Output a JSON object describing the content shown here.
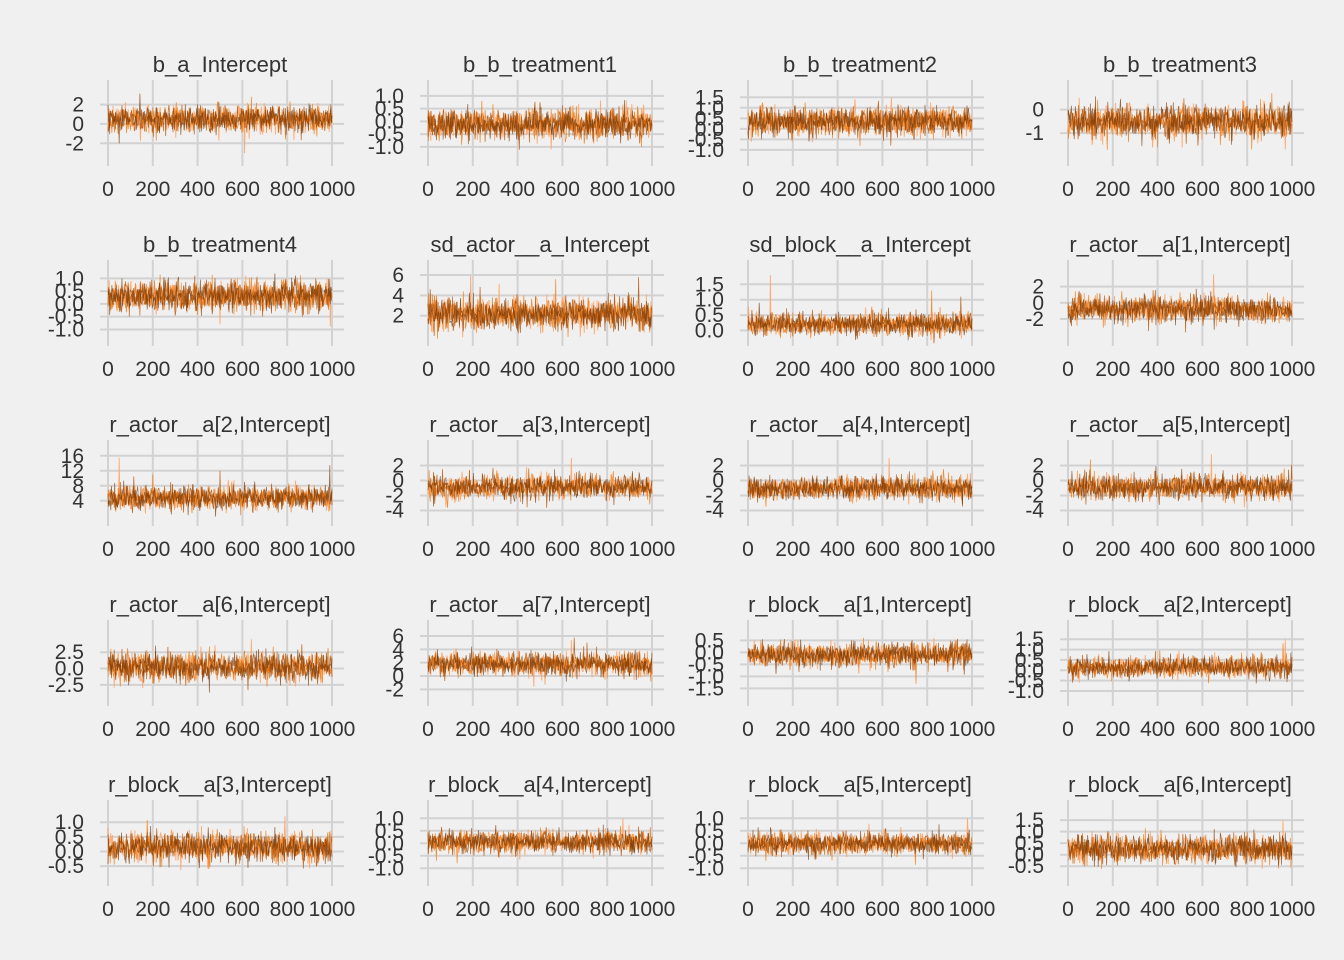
{
  "figure": {
    "background": "#f0f0f0",
    "grid_color": "#d2d2d2",
    "text_color": "#333333"
  },
  "chart_data": [
    {
      "type": "line",
      "title": "b_a_Intercept",
      "x_ticks": [
        0,
        200,
        400,
        600,
        800,
        1000
      ],
      "y_ticks": [
        "-2",
        "0",
        "2"
      ],
      "ylim": [
        -2.9,
        3.3
      ],
      "center": 0.5,
      "spread": 0.7,
      "spikes": [
        [
          610,
          -3.0
        ],
        [
          640,
          2.8
        ]
      ],
      "grid": true,
      "legend": "none"
    },
    {
      "type": "line",
      "title": "b_b_treatment1",
      "x_ticks": [
        0,
        200,
        400,
        600,
        800,
        1000
      ],
      "y_ticks": [
        "-1.0",
        "-0.5",
        "0.0",
        "0.5",
        "1.0"
      ],
      "ylim": [
        -1.2,
        1.15
      ],
      "center": -0.1,
      "spread": 0.3,
      "spikes": [
        [
          550,
          -1.1
        ],
        [
          240,
          0.8
        ]
      ],
      "grid": true,
      "legend": "none"
    },
    {
      "type": "line",
      "title": "b_b_treatment2",
      "x_ticks": [
        0,
        200,
        400,
        600,
        800,
        1000
      ],
      "y_ticks": [
        "-1.0",
        "-0.5",
        "0.0",
        "0.5",
        "1.0",
        "1.5"
      ],
      "ylim": [
        -1.1,
        1.75
      ],
      "center": 0.35,
      "spread": 0.35,
      "spikes": [
        [
          640,
          1.5
        ],
        [
          500,
          -0.8
        ]
      ],
      "grid": true,
      "legend": "none"
    },
    {
      "type": "line",
      "title": "b_b_treatment3",
      "x_ticks": [
        0,
        200,
        400,
        600,
        800,
        1000
      ],
      "y_ticks": [
        "-1",
        "0"
      ],
      "ylim": [
        -1.8,
        0.75
      ],
      "center": -0.5,
      "spread": 0.35,
      "spikes": [
        [
          50,
          0.5
        ],
        [
          400,
          -1.6
        ]
      ],
      "grid": true,
      "legend": "none"
    },
    {
      "type": "line",
      "title": "b_b_treatment4",
      "x_ticks": [
        0,
        200,
        400,
        600,
        800,
        1000
      ],
      "y_ticks": [
        "-1.0",
        "-0.5",
        "0.0",
        "0.5",
        "1.0"
      ],
      "ylim": [
        -1.1,
        1.25
      ],
      "center": 0.3,
      "spread": 0.3,
      "spikes": [
        [
          500,
          -0.8
        ],
        [
          640,
          1.05
        ]
      ],
      "grid": true,
      "legend": "none"
    },
    {
      "type": "line",
      "title": "sd_actor__a_Intercept",
      "x_ticks": [
        0,
        200,
        400,
        600,
        800,
        1000
      ],
      "y_ticks": [
        "2",
        "4",
        "6"
      ],
      "ylim": [
        0.4,
        6.3
      ],
      "center": 2.2,
      "spread": 0.8,
      "spikes": [
        [
          190,
          5.9
        ],
        [
          570,
          5.6
        ],
        [
          940,
          5.8
        ],
        [
          10,
          4.6
        ]
      ],
      "grid": true,
      "legend": "none"
    },
    {
      "type": "line",
      "title": "sd_block__a_Intercept",
      "x_ticks": [
        0,
        200,
        400,
        600,
        800,
        1000
      ],
      "y_ticks": [
        "0.0",
        "0.5",
        "1.0",
        "1.5"
      ],
      "ylim": [
        -0.05,
        1.9
      ],
      "center": 0.2,
      "spread": 0.18,
      "spikes": [
        [
          100,
          1.8
        ],
        [
          820,
          1.3
        ],
        [
          950,
          1.1
        ],
        [
          50,
          0.9
        ]
      ],
      "grid": true,
      "legend": "none"
    },
    {
      "type": "line",
      "title": "r_actor__a[1,Intercept]",
      "x_ticks": [
        0,
        200,
        400,
        600,
        800,
        1000
      ],
      "y_ticks": [
        "-2",
        "0",
        "2"
      ],
      "ylim": [
        -3.6,
        3.8
      ],
      "center": -0.8,
      "spread": 0.8,
      "spikes": [
        [
          650,
          3.5
        ],
        [
          40,
          -2.8
        ]
      ],
      "grid": true,
      "legend": "none"
    },
    {
      "type": "line",
      "title": "r_actor__a[2,Intercept]",
      "x_ticks": [
        0,
        200,
        400,
        600,
        800,
        1000
      ],
      "y_ticks": [
        "4",
        "8",
        "12",
        "16"
      ],
      "ylim": [
        1.0,
        17.0
      ],
      "center": 4.8,
      "spread": 1.6,
      "spikes": [
        [
          50,
          15.5
        ],
        [
          200,
          11.0
        ],
        [
          500,
          12.0
        ],
        [
          990,
          13.5
        ]
      ],
      "grid": true,
      "legend": "none"
    },
    {
      "type": "line",
      "title": "r_actor__a[3,Intercept]",
      "x_ticks": [
        0,
        200,
        400,
        600,
        800,
        1000
      ],
      "y_ticks": [
        "-4",
        "-2",
        "0",
        "2"
      ],
      "ylim": [
        -4.2,
        3.8
      ],
      "center": -0.9,
      "spread": 0.8,
      "spikes": [
        [
          640,
          3.0
        ],
        [
          990,
          -3.2
        ]
      ],
      "grid": true,
      "legend": "none"
    },
    {
      "type": "line",
      "title": "r_actor__a[4,Intercept]",
      "x_ticks": [
        0,
        200,
        400,
        600,
        800,
        1000
      ],
      "y_ticks": [
        "-4",
        "-2",
        "0",
        "2"
      ],
      "ylim": [
        -4.2,
        3.8
      ],
      "center": -1.0,
      "spread": 0.8,
      "spikes": [
        [
          630,
          3.0
        ],
        [
          80,
          -3.5
        ]
      ],
      "grid": true,
      "legend": "none"
    },
    {
      "type": "line",
      "title": "r_actor__a[5,Intercept]",
      "x_ticks": [
        0,
        200,
        400,
        600,
        800,
        1000
      ],
      "y_ticks": [
        "-4",
        "-2",
        "0",
        "2"
      ],
      "ylim": [
        -4.2,
        3.8
      ],
      "center": -0.9,
      "spread": 0.8,
      "spikes": [
        [
          640,
          3.5
        ],
        [
          100,
          2.8
        ],
        [
          80,
          -3.2
        ]
      ],
      "grid": true,
      "legend": "none"
    },
    {
      "type": "line",
      "title": "r_actor__a[6,Intercept]",
      "x_ticks": [
        0,
        200,
        400,
        600,
        800,
        1000
      ],
      "y_ticks": [
        "-2.5",
        "0.0",
        "2.5"
      ],
      "ylim": [
        -3.6,
        5.6
      ],
      "center": 0.3,
      "spread": 1.1,
      "spikes": [
        [
          640,
          4.5
        ],
        [
          710,
          -2.8
        ]
      ],
      "grid": true,
      "legend": "none"
    },
    {
      "type": "line",
      "title": "r_actor__a[7,Intercept]",
      "x_ticks": [
        0,
        200,
        400,
        600,
        800,
        1000
      ],
      "y_ticks": [
        "-2",
        "0",
        "2",
        "4",
        "6"
      ],
      "ylim": [
        -2.4,
        6.6
      ],
      "center": 1.8,
      "spread": 0.9,
      "spikes": [
        [
          640,
          5.4
        ],
        [
          995,
          -0.8
        ]
      ],
      "grid": true,
      "legend": "none"
    },
    {
      "type": "line",
      "title": "r_block__a[1,Intercept]",
      "x_ticks": [
        0,
        200,
        400,
        600,
        800,
        1000
      ],
      "y_ticks": [
        "-1.5",
        "-1.0",
        "-0.5",
        "0.0",
        "0.5"
      ],
      "ylim": [
        -1.65,
        0.85
      ],
      "center": -0.1,
      "spread": 0.25,
      "spikes": [
        [
          830,
          0.6
        ],
        [
          750,
          -1.3
        ]
      ],
      "grid": true,
      "legend": "none"
    },
    {
      "type": "line",
      "title": "r_block__a[2,Intercept]",
      "x_ticks": [
        0,
        200,
        400,
        600,
        800,
        1000
      ],
      "y_ticks": [
        "-1.0",
        "-0.5",
        "0.0",
        "0.5",
        "1.0",
        "1.5"
      ],
      "ylim": [
        -1.05,
        1.85
      ],
      "center": 0.15,
      "spread": 0.25,
      "spikes": [
        [
          970,
          1.5
        ],
        [
          960,
          1.3
        ],
        [
          20,
          -0.6
        ]
      ],
      "grid": true,
      "legend": "none"
    },
    {
      "type": "line",
      "title": "r_block__a[3,Intercept]",
      "x_ticks": [
        0,
        200,
        400,
        600,
        800,
        1000
      ],
      "y_ticks": [
        "-0.5",
        "0.0",
        "0.5",
        "1.0"
      ],
      "ylim": [
        -0.7,
        1.35
      ],
      "center": 0.15,
      "spread": 0.25,
      "spikes": [
        [
          790,
          1.2
        ],
        [
          450,
          -0.6
        ]
      ],
      "grid": true,
      "legend": "none"
    },
    {
      "type": "line",
      "title": "r_block__a[4,Intercept]",
      "x_ticks": [
        0,
        200,
        400,
        600,
        800,
        1000
      ],
      "y_ticks": [
        "-1.0",
        "-0.5",
        "0.0",
        "0.5",
        "1.0"
      ],
      "ylim": [
        -1.15,
        1.25
      ],
      "center": 0.05,
      "spread": 0.22,
      "spikes": [
        [
          870,
          1.0
        ],
        [
          130,
          -0.8
        ]
      ],
      "grid": true,
      "legend": "none"
    },
    {
      "type": "line",
      "title": "r_block__a[5,Intercept]",
      "x_ticks": [
        0,
        200,
        400,
        600,
        800,
        1000
      ],
      "y_ticks": [
        "-1.0",
        "-0.5",
        "0.0",
        "0.5",
        "1.0"
      ],
      "ylim": [
        -1.15,
        1.25
      ],
      "center": 0.0,
      "spread": 0.22,
      "spikes": [
        [
          980,
          1.0
        ],
        [
          80,
          -0.7
        ]
      ],
      "grid": true,
      "legend": "none"
    },
    {
      "type": "line",
      "title": "r_block__a[6,Intercept]",
      "x_ticks": [
        0,
        200,
        400,
        600,
        800,
        1000
      ],
      "y_ticks": [
        "-0.5",
        "0.0",
        "0.5",
        "1.0",
        "1.5"
      ],
      "ylim": [
        -0.75,
        1.85
      ],
      "center": 0.25,
      "spread": 0.3,
      "spikes": [
        [
          960,
          1.5
        ],
        [
          940,
          -0.6
        ]
      ],
      "grid": true,
      "legend": "none"
    }
  ],
  "series_colors": [
    "#ffa366",
    "#f07f1a",
    "#b85a0e",
    "#7a3a05"
  ]
}
